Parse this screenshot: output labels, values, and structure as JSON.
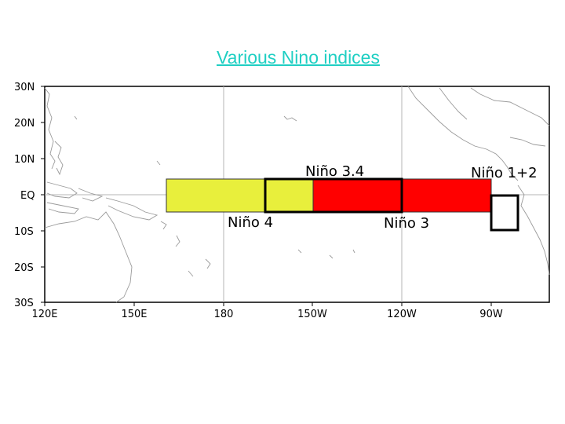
{
  "title": "Various Nino indices",
  "map": {
    "lat_ticks": [
      "30N",
      "20N",
      "10N",
      "EQ",
      "10S",
      "20S",
      "30S"
    ],
    "lon_ticks": [
      "120E",
      "150E",
      "180",
      "150W",
      "120W",
      "90W"
    ],
    "regions": [
      {
        "name": "Niño 4",
        "fill": "#e8ef3c"
      },
      {
        "name": "Niño 3",
        "fill": "#ff0000"
      },
      {
        "name": "Niño 3.4",
        "fill": "none"
      },
      {
        "name": "Niño 1+2",
        "fill": "none"
      }
    ]
  },
  "colors": {
    "title": "#1fcfc3",
    "nino4": "#e8ef3c",
    "nino3": "#ff0000",
    "border": "#000000"
  }
}
